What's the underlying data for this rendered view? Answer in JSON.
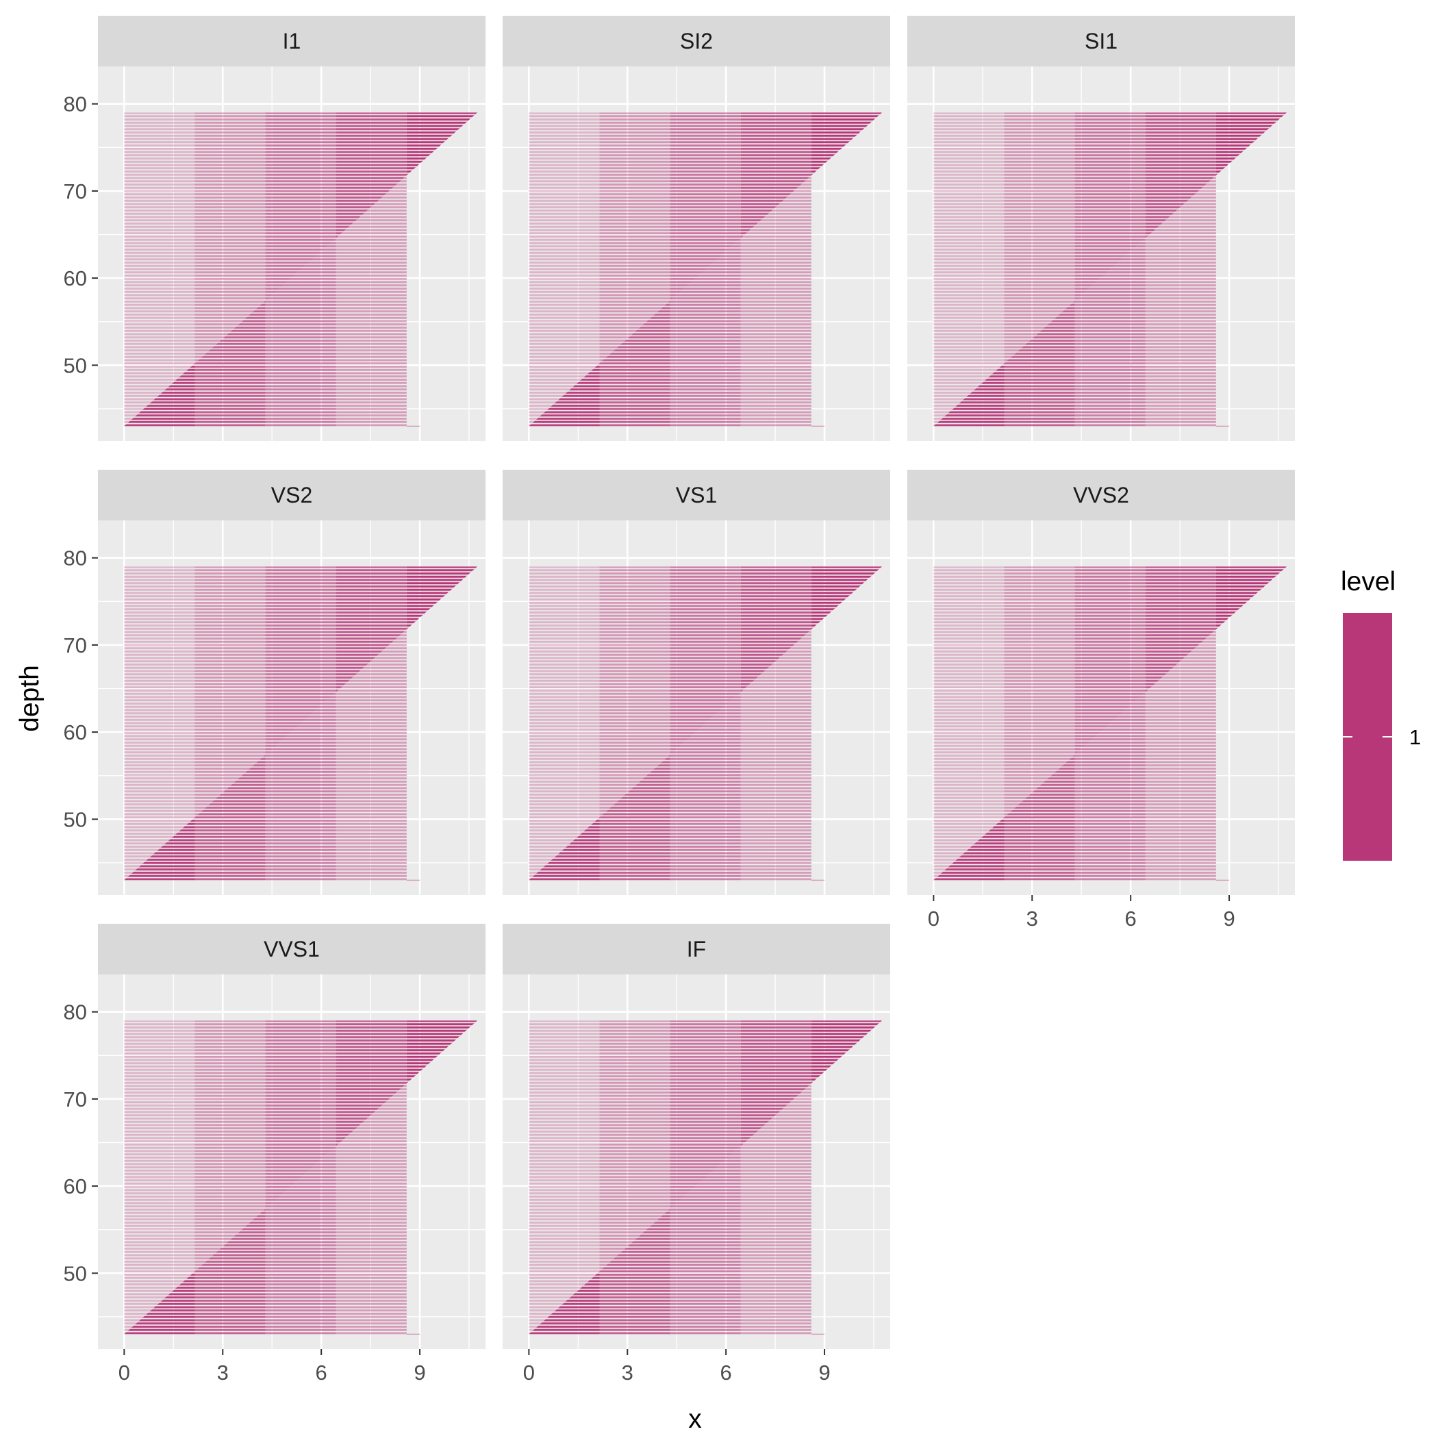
{
  "chart_data": {
    "type": "heatmap",
    "xlabel": "x",
    "ylabel": "depth",
    "xlim": [
      -0.8,
      11.0
    ],
    "ylim": [
      41.3,
      84.3
    ],
    "x_ticks": [
      0,
      3,
      6,
      9
    ],
    "y_ticks": [
      50,
      60,
      70,
      80
    ],
    "grid": true,
    "ncol": 3,
    "facets": [
      "I1",
      "SI2",
      "SI1",
      "VS2",
      "VS1",
      "VVS2",
      "VVS1",
      "IF"
    ],
    "band_edges": [
      0,
      2.15,
      4.3,
      6.45,
      8.6,
      10.75
    ],
    "diagonal": {
      "x0": 0,
      "y0": 43,
      "x1": 10.75,
      "y1": 79
    },
    "depth_range": [
      43,
      79
    ],
    "colors": {
      "fill": "#b83779",
      "panel_bg": "#ebebeb",
      "grid": "#ffffff",
      "strip_bg": "#d9d9d9"
    },
    "legend": {
      "title": "level",
      "labels": [
        "1"
      ],
      "placement": "right"
    }
  }
}
